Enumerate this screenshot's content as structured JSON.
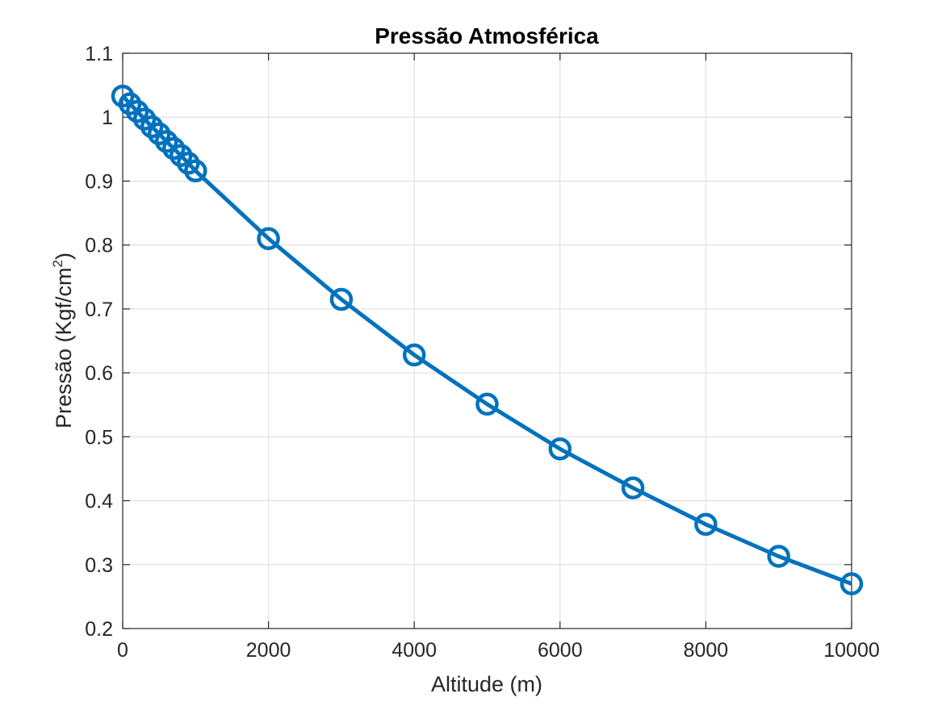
{
  "chart_data": {
    "type": "line",
    "title": "Pressão Atmosférica",
    "xlabel": "Altitude (m)",
    "ylabel_main": "Pressão (Kgf/cm",
    "ylabel_sup": "2",
    "ylabel_close": ")",
    "xlim": [
      0,
      10000
    ],
    "ylim": [
      0.2,
      1.1
    ],
    "xticks": [
      0,
      2000,
      4000,
      6000,
      8000,
      10000
    ],
    "xtick_labels": [
      "0",
      "2000",
      "4000",
      "6000",
      "8000",
      "10000"
    ],
    "yticks": [
      0.2,
      0.3,
      0.4,
      0.5,
      0.6,
      0.7,
      0.8,
      0.9,
      1.0,
      1.1
    ],
    "ytick_labels": [
      "0.2",
      "0.3",
      "0.4",
      "0.5",
      "0.6",
      "0.7",
      "0.8",
      "0.9",
      "1",
      "1.1"
    ],
    "grid": true,
    "marker": "circle",
    "line_color": "#0072BD",
    "series": [
      {
        "x": [
          0,
          100,
          200,
          300,
          400,
          500,
          600,
          700,
          800,
          900,
          1000,
          2000,
          3000,
          4000,
          5000,
          6000,
          7000,
          8000,
          9000,
          10000
        ],
        "y": [
          1.033,
          1.021,
          1.009,
          0.997,
          0.985,
          0.974,
          0.962,
          0.951,
          0.94,
          0.928,
          0.916,
          0.81,
          0.715,
          0.628,
          0.551,
          0.481,
          0.42,
          0.363,
          0.313,
          0.27
        ]
      }
    ]
  }
}
